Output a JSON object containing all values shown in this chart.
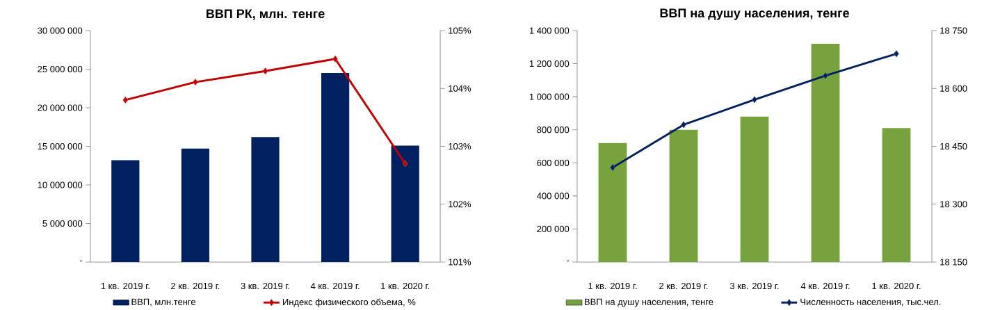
{
  "chart_data": [
    {
      "type": "bar",
      "title": "ВВП РК, млн. тенге",
      "categories": [
        "1 кв. 2019 г.",
        "2 кв. 2019 г.",
        "3 кв. 2019 г.",
        "4 кв. 2019 г.",
        "1 кв. 2020 г."
      ],
      "series": [
        {
          "name": "ВВП, млн.тенге",
          "color": "#002060",
          "values": [
            13200000,
            14700000,
            16200000,
            24500000,
            15100000
          ]
        },
        {
          "name": "Индекс физического объема, %",
          "type": "line",
          "axis": "y2",
          "marker": "diamond",
          "color": "#C00000",
          "values": [
            103.8,
            104.11,
            104.3,
            104.51,
            102.7
          ]
        }
      ],
      "ylim": [
        0,
        30000000
      ],
      "yticks": [
        {
          "value": 0,
          "label": "-"
        },
        {
          "value": 5000000,
          "label": "5 000 000"
        },
        {
          "value": 10000000,
          "label": "10 000 000"
        },
        {
          "value": 15000000,
          "label": "15 000 000"
        },
        {
          "value": 20000000,
          "label": "20 000 000"
        },
        {
          "value": 25000000,
          "label": "25 000 000"
        },
        {
          "value": 30000000,
          "label": "30 000 000"
        }
      ],
      "y2lim": [
        101,
        105
      ],
      "y2ticks": [
        {
          "value": 101,
          "label": "101%"
        },
        {
          "value": 102,
          "label": "102%"
        },
        {
          "value": 103,
          "label": "103%"
        },
        {
          "value": 104,
          "label": "104%"
        },
        {
          "value": 105,
          "label": "105%"
        }
      ],
      "legend": "bottom"
    },
    {
      "type": "bar",
      "title": "ВВП на душу населения, тенге",
      "categories": [
        "1 кв. 2019 г.",
        "2 кв. 2019 г.",
        "3 кв. 2019 г.",
        "4 кв. 2019 г.",
        "1 кв. 2020 г."
      ],
      "series": [
        {
          "name": "ВВП на душу населения, тенге",
          "color": "#77A33F",
          "values": [
            720000,
            800000,
            880000,
            1320000,
            810000
          ]
        },
        {
          "name": "Численность населения, тыс.чел.",
          "type": "line",
          "axis": "y2",
          "marker": "diamond",
          "color": "#002060",
          "values": [
            18395,
            18506,
            18571,
            18633,
            18690
          ]
        }
      ],
      "ylim": [
        0,
        1400000
      ],
      "yticks": [
        {
          "value": 0,
          "label": "-"
        },
        {
          "value": 200000,
          "label": "200 000"
        },
        {
          "value": 400000,
          "label": "400 000"
        },
        {
          "value": 600000,
          "label": "600 000"
        },
        {
          "value": 800000,
          "label": "800 000"
        },
        {
          "value": 1000000,
          "label": "1 000 000"
        },
        {
          "value": 1200000,
          "label": "1 200 000"
        },
        {
          "value": 1400000,
          "label": "1 400 000"
        }
      ],
      "y2lim": [
        18150,
        18750
      ],
      "y2ticks": [
        {
          "value": 18150,
          "label": "18 150"
        },
        {
          "value": 18300,
          "label": "18 300"
        },
        {
          "value": 18450,
          "label": "18 450"
        },
        {
          "value": 18600,
          "label": "18 600"
        },
        {
          "value": 18750,
          "label": "18 750"
        }
      ],
      "legend": "bottom"
    }
  ]
}
